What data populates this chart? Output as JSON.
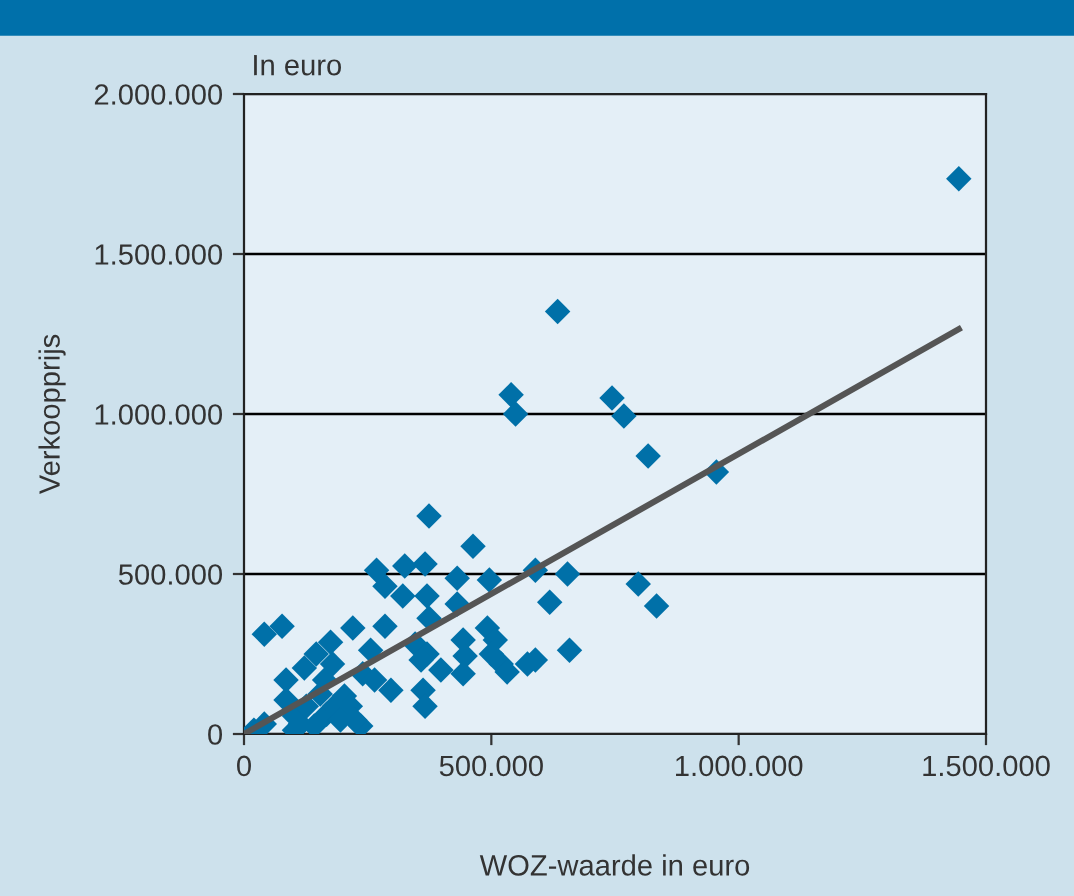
{
  "chart_data": {
    "type": "scatter",
    "xlabel": "WOZ-waarde in euro",
    "ylabel": "Verkoopprijs",
    "annotations": [
      "In euro"
    ],
    "xlim": [
      0,
      1500000
    ],
    "xticks": [
      {
        "value": 0,
        "label": "0"
      },
      {
        "value": 500000,
        "label": "500.000"
      },
      {
        "value": 1000000,
        "label": "1.000.000"
      },
      {
        "value": 1500000,
        "label": "1.500.000"
      }
    ],
    "ylim": [
      0,
      2000000
    ],
    "yticks": [
      {
        "value": 0,
        "label": "0"
      },
      {
        "value": 500000,
        "label": "500.000"
      },
      {
        "value": 1000000,
        "label": "1.000.000"
      },
      {
        "value": 1500000,
        "label": "1.500.000"
      },
      {
        "value": 2000000,
        "label": "2.000.000"
      }
    ],
    "grid": "y",
    "legend": false,
    "series": [
      {
        "marker": "diamond",
        "color": "#0070a8",
        "x": [
          1445000,
          634000,
          540000,
          549000,
          744000,
          768000,
          817000,
          955000,
          797000,
          834000,
          374000,
          463000,
          268000,
          325000,
          366000,
          285000,
          321000,
          370000,
          431000,
          496000,
          589000,
          654000,
          618000,
          431000,
          374000,
          41000,
          77000,
          220000,
          285000,
          175000,
          146000,
          179000,
          122000,
          85000,
          256000,
          346000,
          370000,
          358000,
          398000,
          443000,
          447000,
          443000,
          492000,
          508000,
          500000,
          520000,
          532000,
          573000,
          589000,
          658000,
          240000,
          264000,
          297000,
          362000,
          366000,
          203000,
          215000,
          236000,
          20000,
          41000,
          85000,
          102000,
          114000,
          126000,
          142000,
          154000,
          167000,
          102000,
          183000,
          195000,
          163000,
          224000
        ],
        "values": [
          1735000,
          1320000,
          1060000,
          1000000,
          1050000,
          994000,
          869000,
          819000,
          469000,
          400000,
          681000,
          587000,
          512000,
          525000,
          531000,
          462000,
          431000,
          431000,
          487000,
          481000,
          512000,
          500000,
          412000,
          406000,
          362000,
          312000,
          337000,
          331000,
          337000,
          287000,
          250000,
          219000,
          206000,
          169000,
          262000,
          281000,
          250000,
          231000,
          200000,
          294000,
          244000,
          188000,
          331000,
          294000,
          250000,
          219000,
          194000,
          219000,
          231000,
          262000,
          188000,
          169000,
          137000,
          137000,
          87000,
          119000,
          87000,
          25000,
          12000,
          31000,
          106000,
          56000,
          31000,
          87000,
          25000,
          125000,
          62000,
          12000,
          87000,
          44000,
          169000,
          44000
        ]
      },
      {
        "type": "line",
        "color": "#555555",
        "line_style": "solid",
        "x": [
          0,
          1445000
        ],
        "values": [
          0,
          1265000
        ]
      }
    ]
  }
}
